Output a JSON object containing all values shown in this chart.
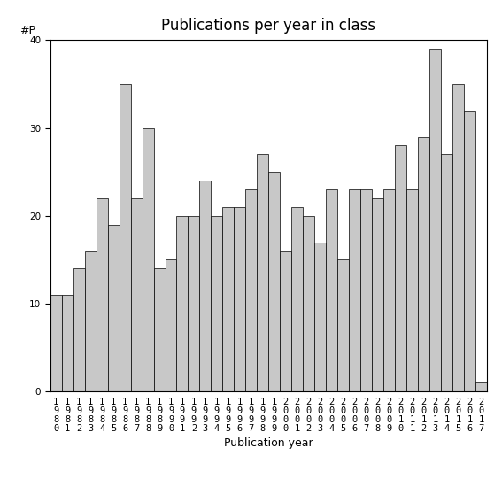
{
  "title": "Publications per year in class",
  "xlabel": "Publication year",
  "ylabel": "#P",
  "years": [
    "1980",
    "1981",
    "1982",
    "1983",
    "1984",
    "1985",
    "1986",
    "1987",
    "1988",
    "1989",
    "1990",
    "1991",
    "1992",
    "1993",
    "1994",
    "1995",
    "1996",
    "1997",
    "1998",
    "1999",
    "2000",
    "2001",
    "2002",
    "2003",
    "2004",
    "2005",
    "2006",
    "2007",
    "2008",
    "2009",
    "2010",
    "2011",
    "2012",
    "2013",
    "2014",
    "2015",
    "2016",
    "2017"
  ],
  "values": [
    11,
    11,
    14,
    16,
    22,
    19,
    35,
    22,
    30,
    14,
    15,
    20,
    20,
    24,
    20,
    21,
    21,
    23,
    27,
    25,
    16,
    21,
    20,
    17,
    23,
    15,
    23,
    23,
    22,
    23,
    28,
    23,
    29,
    39,
    27,
    35,
    32,
    1
  ],
  "bar_color": "#c8c8c8",
  "bar_edge_color": "#000000",
  "bar_edge_width": 0.5,
  "ylim": [
    0,
    40
  ],
  "yticks": [
    0,
    10,
    20,
    30,
    40
  ],
  "bg_color": "#ffffff",
  "title_fontsize": 12,
  "label_fontsize": 9,
  "tick_fontsize": 7.5
}
